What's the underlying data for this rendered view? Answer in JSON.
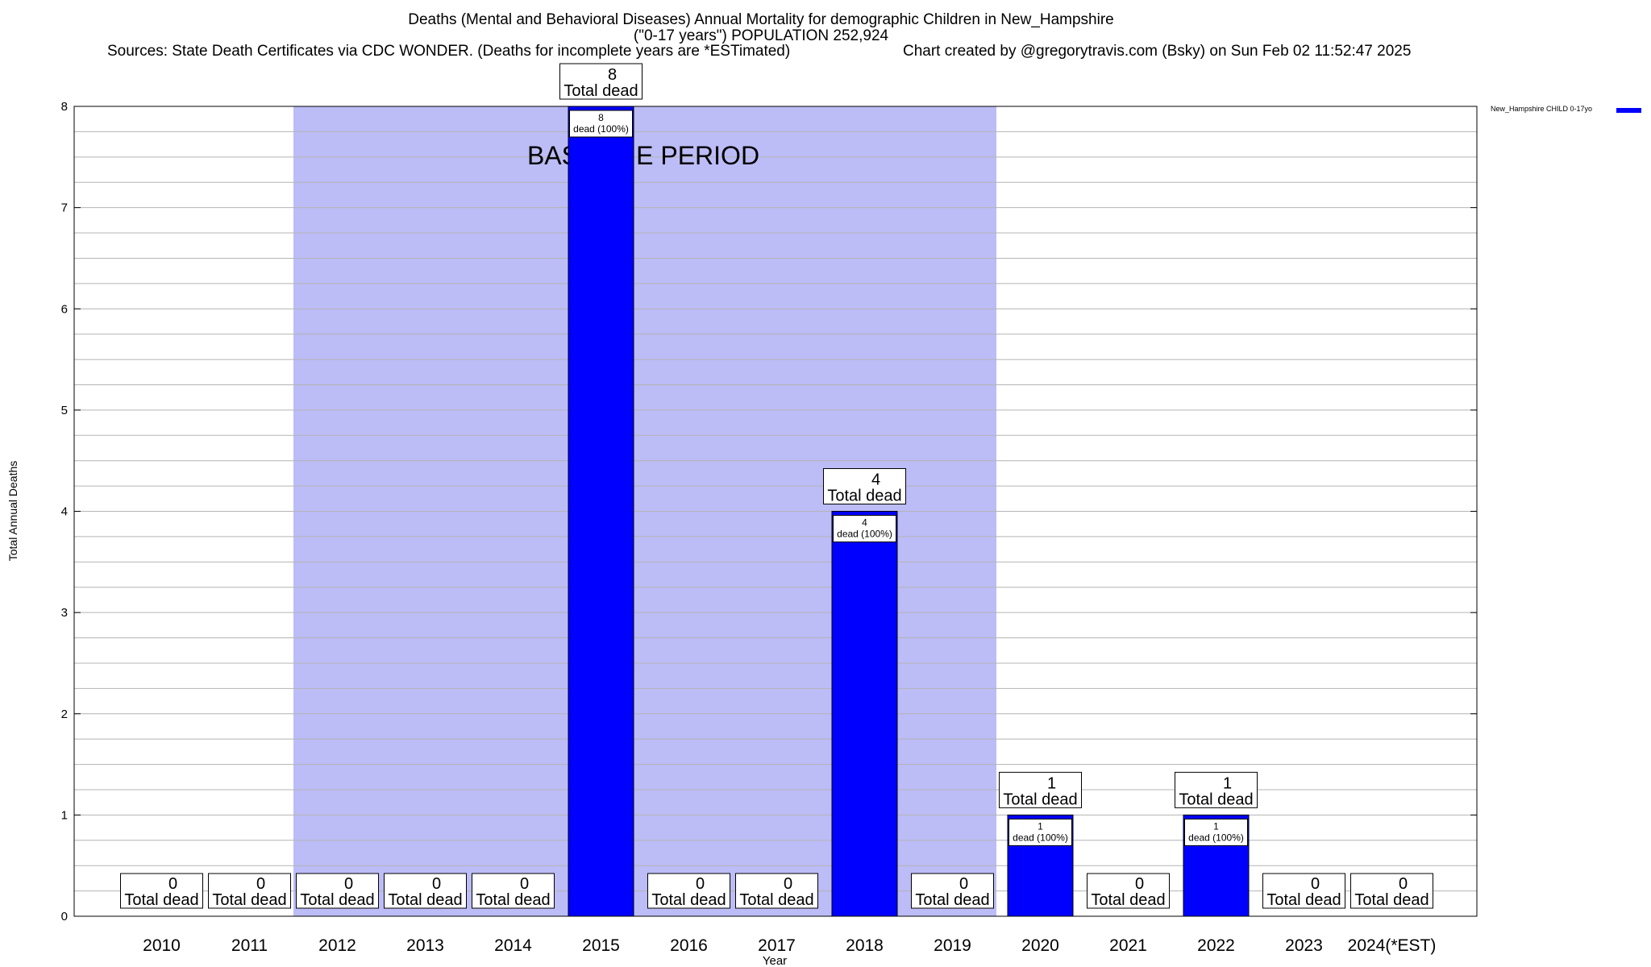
{
  "header": {
    "title_line1": "Deaths (Mental and Behavioral Diseases) Annual Mortality for demographic Children in New_Hampshire",
    "title_line2": "(\"0-17 years\") POPULATION 252,924",
    "sources": "Sources: State Death Certificates via CDC WONDER. (Deaths for incomplete years are *ESTimated)",
    "credit": "Chart created by @gregorytravis.com (Bsky) on Sun Feb 02 11:52:47 2025"
  },
  "chart_data": {
    "type": "bar",
    "xlabel": "Year",
    "ylabel": "Total Annual Deaths",
    "ylim": [
      0,
      8
    ],
    "yticks": [
      "0",
      "1",
      "2",
      "3",
      "4",
      "5",
      "6",
      "7",
      "8"
    ],
    "grid": true,
    "legend_position": "top-right",
    "categories": [
      "2010",
      "2011",
      "2012",
      "2013",
      "2014",
      "2015",
      "2016",
      "2017",
      "2018",
      "2019",
      "2020",
      "2021",
      "2022",
      "2023",
      "2024(*EST)"
    ],
    "series": [
      {
        "name": "New_Hampshire CHILD 0-17yo",
        "color": "#0000ff",
        "values": [
          0,
          0,
          0,
          0,
          0,
          8,
          0,
          0,
          4,
          0,
          1,
          0,
          1,
          0,
          0
        ]
      }
    ],
    "total_label": "Total dead",
    "inner_label": "dead (100%)",
    "baseline": {
      "label": "BASELINE PERIOD",
      "start": "2012",
      "end": "2019",
      "color": "#bcbcf7"
    }
  }
}
